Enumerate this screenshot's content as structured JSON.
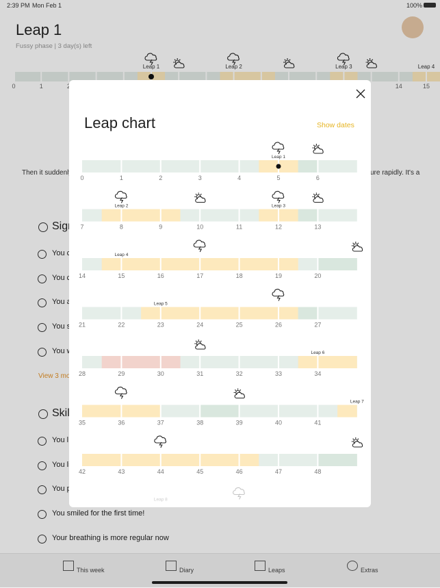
{
  "status": {
    "time": "2:39 PM",
    "date": "Mon Feb 1",
    "battery": "100%"
  },
  "header": {
    "title": "Leap 1",
    "subtitle": "Fussy phase | 3 day(s) left"
  },
  "timeline": {
    "ticks": [
      0,
      1,
      2,
      14,
      15
    ],
    "current": 5,
    "bands": [
      {
        "from": 4.5,
        "to": 5.5,
        "color": "#fde9bd"
      },
      {
        "from": 7.5,
        "to": 9.5,
        "color": "#fde9bd"
      },
      {
        "from": 11.5,
        "to": 12.5,
        "color": "#fde9bd"
      },
      {
        "from": 14.5,
        "to": 16,
        "color": "#fde9bd"
      }
    ],
    "leaps": [
      {
        "label": "Leap 1",
        "at": 5
      },
      {
        "label": "Leap 2",
        "at": 8
      },
      {
        "label": "Leap 3",
        "at": 12
      },
      {
        "label": "Leap 4",
        "at": 15
      }
    ],
    "icons": [
      {
        "kind": "storm",
        "at": 5
      },
      {
        "kind": "sun",
        "at": 6
      },
      {
        "kind": "storm",
        "at": 8
      },
      {
        "kind": "sun",
        "at": 10
      },
      {
        "kind": "storm",
        "at": 12
      },
      {
        "kind": "sun",
        "at": 13
      }
    ]
  },
  "body": {
    "intro_left": "Then it suddenly",
    "intro_right": "ure rapidly. It's a",
    "sections": [
      {
        "title": "Sign",
        "items": [
          "You c",
          "You c",
          "You a",
          "You s",
          "You w"
        ],
        "more": "View 3 mo"
      },
      {
        "title": "Skil",
        "items": [
          "You l",
          "You li",
          "You p",
          "You smiled for the first time!",
          "Your breathing is more regular now"
        ]
      }
    ]
  },
  "tabs": [
    "This week",
    "Diary",
    "Leaps",
    "Extras"
  ],
  "modal": {
    "title": "Leap chart",
    "action": "Show dates",
    "current": 5,
    "rows": [
      {
        "weeks": [
          0,
          1,
          2,
          3,
          4,
          5,
          6
        ],
        "bands": [
          {
            "from": 4.5,
            "to": 5.5,
            "color": "#fde9bd"
          },
          {
            "from": 5.5,
            "to": 6,
            "color": "#d9e7de"
          }
        ],
        "leaps": [
          {
            "label": "Leap 1",
            "at": 5
          }
        ],
        "icons": [
          {
            "kind": "storm",
            "at": 5
          },
          {
            "kind": "sun",
            "at": 6
          }
        ]
      },
      {
        "weeks": [
          7,
          8,
          9,
          10,
          11,
          12,
          13
        ],
        "bands": [
          {
            "from": 7.5,
            "to": 9.5,
            "color": "#fde9bd"
          },
          {
            "from": 11.5,
            "to": 12.5,
            "color": "#fde9bd"
          },
          {
            "from": 12.5,
            "to": 13,
            "color": "#d9e7de"
          }
        ],
        "leaps": [
          {
            "label": "Leap 2",
            "at": 8
          },
          {
            "label": "Leap 3",
            "at": 12
          }
        ],
        "icons": [
          {
            "kind": "storm",
            "at": 8
          },
          {
            "kind": "sun",
            "at": 10
          },
          {
            "kind": "storm",
            "at": 12
          },
          {
            "kind": "sun",
            "at": 13
          }
        ]
      },
      {
        "weeks": [
          14,
          15,
          16,
          17,
          18,
          19,
          20
        ],
        "bands": [
          {
            "from": 14.5,
            "to": 19.5,
            "color": "#fde9bd"
          },
          {
            "from": 20,
            "to": 21,
            "color": "#d9e7de"
          }
        ],
        "leaps": [
          {
            "label": "Leap 4",
            "at": 15
          }
        ],
        "icons": [
          {
            "kind": "storm",
            "at": 17
          },
          {
            "kind": "sun",
            "at": 21
          }
        ]
      },
      {
        "weeks": [
          21,
          22,
          23,
          24,
          25,
          26,
          27
        ],
        "bands": [
          {
            "from": 22.5,
            "to": 26.5,
            "color": "#fde9bd"
          },
          {
            "from": 26.5,
            "to": 27,
            "color": "#d9e7de"
          }
        ],
        "leaps": [
          {
            "label": "Leap 5",
            "at": 23
          }
        ],
        "icons": [
          {
            "kind": "storm",
            "at": 26
          }
        ]
      },
      {
        "weeks": [
          28,
          29,
          30,
          31,
          32,
          33,
          34
        ],
        "bands": [
          {
            "from": 28.5,
            "to": 30.5,
            "color": "#f2d3cc"
          },
          {
            "from": 33.5,
            "to": 35,
            "color": "#fde9bd"
          }
        ],
        "leaps": [
          {
            "label": "Leap 6",
            "at": 34
          }
        ],
        "icons": [
          {
            "kind": "sun",
            "at": 31
          }
        ]
      },
      {
        "weeks": [
          35,
          36,
          37,
          38,
          39,
          40,
          41
        ],
        "bands": [
          {
            "from": 35,
            "to": 37,
            "color": "#fde9bd"
          },
          {
            "from": 38,
            "to": 39,
            "color": "#d9e7de"
          },
          {
            "from": 41.5,
            "to": 42,
            "color": "#fde9bd"
          }
        ],
        "leaps": [
          {
            "label": "Leap 7",
            "at": 42
          }
        ],
        "icons": [
          {
            "kind": "storm",
            "at": 36
          },
          {
            "kind": "sun",
            "at": 39
          }
        ]
      },
      {
        "weeks": [
          42,
          43,
          44,
          45,
          46,
          47,
          48
        ],
        "bands": [
          {
            "from": 42,
            "to": 46.5,
            "color": "#fde9bd"
          },
          {
            "from": 48,
            "to": 49,
            "color": "#d9e7de"
          }
        ],
        "leaps": [],
        "icons": [
          {
            "kind": "storm",
            "at": 44
          },
          {
            "kind": "sun",
            "at": 49
          }
        ]
      },
      {
        "weeks": [],
        "bands": [],
        "leaps": [
          {
            "label": "Leap 8",
            "at": 51
          }
        ],
        "icons": [
          {
            "kind": "storm",
            "at": 53
          }
        ],
        "faded": true
      }
    ]
  }
}
